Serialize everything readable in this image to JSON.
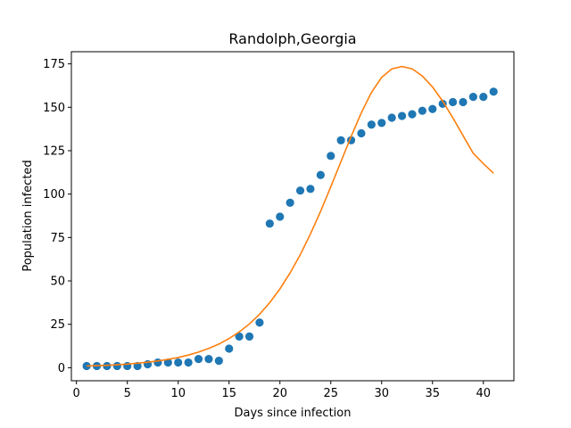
{
  "chart_data": {
    "type": "scatter",
    "title": "Randolph,Georgia",
    "xlabel": "Days since infection",
    "ylabel": "Population infected",
    "xlim": [
      -0.5,
      43
    ],
    "ylim": [
      -7.5,
      182
    ],
    "xticks": [
      0,
      5,
      10,
      15,
      20,
      25,
      30,
      35,
      40
    ],
    "yticks": [
      0,
      25,
      50,
      75,
      100,
      125,
      150,
      175
    ],
    "grid": false,
    "legend": "none",
    "series": [
      {
        "kind": "scatter",
        "color": "#1f77b4",
        "x": [
          1,
          2,
          3,
          4,
          5,
          6,
          7,
          8,
          9,
          10,
          11,
          12,
          13,
          14,
          15,
          16,
          17,
          18,
          19,
          20,
          21,
          22,
          23,
          24,
          25,
          26,
          27,
          28,
          29,
          30,
          31,
          32,
          33,
          34,
          35,
          36,
          37,
          38,
          39,
          40,
          41
        ],
        "y": [
          1,
          1,
          1,
          1,
          1,
          1,
          2,
          3,
          3,
          3,
          3,
          5,
          5,
          4,
          11,
          18,
          18,
          26,
          83,
          87,
          95,
          102,
          103,
          111,
          122,
          131,
          131,
          135,
          140,
          141,
          144,
          145,
          146,
          148,
          149,
          152,
          153,
          153,
          156,
          156,
          159
        ]
      },
      {
        "kind": "line",
        "color": "#ff7f0e",
        "x": [
          1,
          2,
          3,
          4,
          5,
          6,
          7,
          8,
          9,
          10,
          11,
          12,
          13,
          14,
          15,
          16,
          17,
          18,
          19,
          20,
          21,
          22,
          23,
          24,
          25,
          26,
          27,
          28,
          29,
          30,
          31,
          32,
          33,
          34,
          35,
          36,
          37,
          38,
          39,
          40,
          41
        ],
        "y": [
          1,
          1.2,
          1.4,
          1.7,
          2.1,
          2.6,
          3.2,
          3.9,
          4.8,
          5.9,
          7.3,
          9,
          11.1,
          13.6,
          16.8,
          20.6,
          25.2,
          30.8,
          37.5,
          45.4,
          54.6,
          65.1,
          77,
          90.1,
          104.2,
          118.7,
          133.2,
          146.8,
          158.6,
          167.2,
          172.1,
          173.5,
          172.1,
          168,
          161.7,
          153.5,
          143.9,
          133.7,
          123.5,
          117.5,
          112
        ]
      }
    ]
  }
}
